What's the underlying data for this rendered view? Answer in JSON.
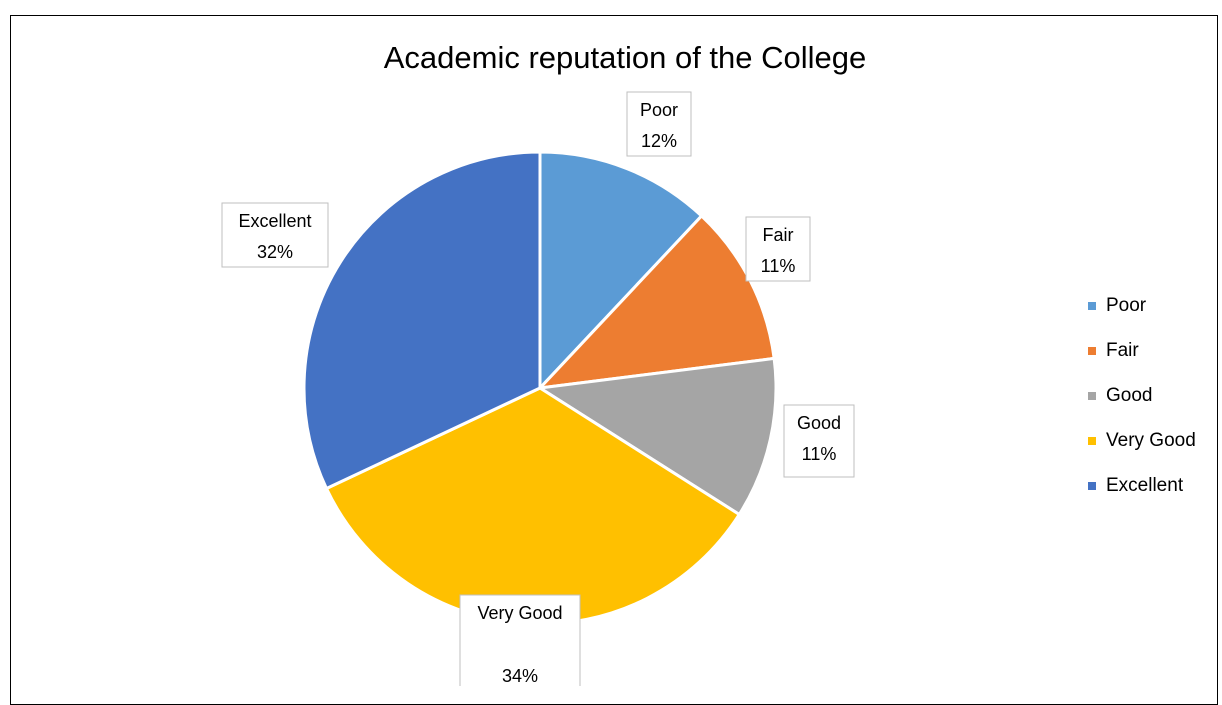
{
  "chart_data": {
    "type": "pie",
    "title": "Academic reputation of the College",
    "categories": [
      "Poor",
      "Fair",
      "Good",
      "Very Good",
      "Excellent"
    ],
    "values": [
      12,
      11,
      11,
      34,
      32
    ],
    "value_labels": [
      "12%",
      "11%",
      "11%",
      "34%",
      "32%"
    ],
    "colors": [
      "#5b9bd5",
      "#ed7d31",
      "#a5a5a5",
      "#ffc000",
      "#4472c4"
    ],
    "legend": "right"
  }
}
